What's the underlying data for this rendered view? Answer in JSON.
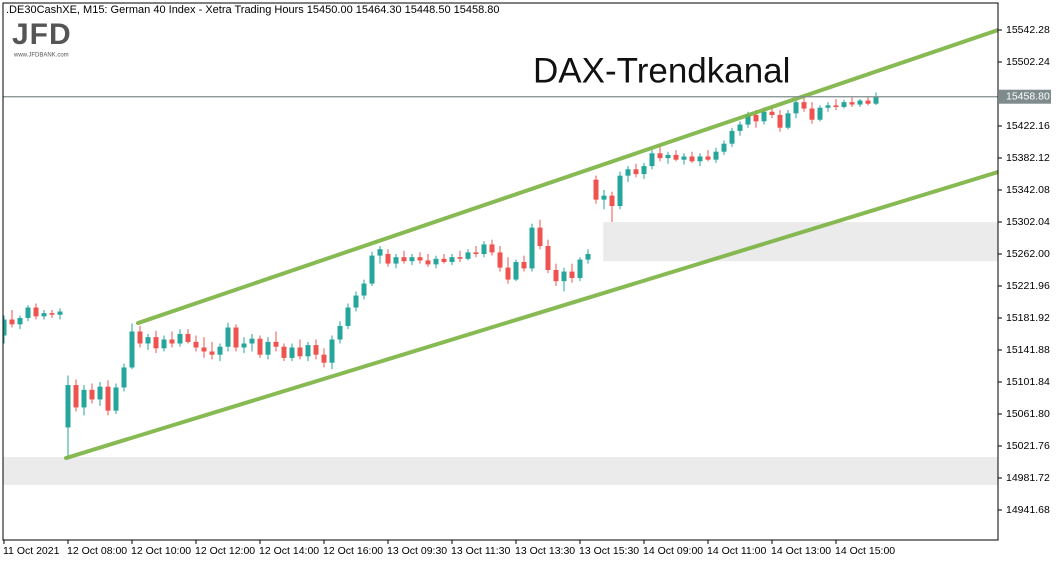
{
  "chart_data": {
    "type": "candlestick",
    "header": ".DE30CashXE, M15:  German 40 Index  - Xetra Trading Hours  15450.00 15464.30 15448.50 15458.80",
    "logo": "JFD",
    "logo_subtitle": "www.JFDBANK.com",
    "title": "DAX-Trendkanal",
    "categories": [
      "11 Oct 2021",
      null,
      null,
      null,
      null,
      null,
      null,
      null,
      "12 Oct 08:00",
      null,
      null,
      null,
      null,
      null,
      null,
      null,
      "12 Oct 10:00",
      null,
      null,
      null,
      null,
      null,
      null,
      null,
      "12 Oct 12:00",
      null,
      null,
      null,
      null,
      null,
      null,
      null,
      "12 Oct 14:00",
      null,
      null,
      null,
      null,
      null,
      null,
      null,
      "12 Oct 16:00",
      null,
      null,
      null,
      null,
      null,
      null,
      null,
      "13 Oct 09:30",
      null,
      null,
      null,
      null,
      null,
      null,
      null,
      "13 Oct 11:30",
      null,
      null,
      null,
      null,
      null,
      null,
      null,
      "13 Oct 13:30",
      null,
      null,
      null,
      null,
      null,
      null,
      null,
      "13 Oct 15:30",
      null,
      null,
      null,
      null,
      null,
      null,
      null,
      "14 Oct 09:00",
      null,
      null,
      null,
      null,
      null,
      null,
      null,
      "14 Oct 11:00",
      null,
      null,
      null,
      null,
      null,
      null,
      null,
      "14 Oct 13:00",
      null,
      null,
      null,
      null,
      null,
      null,
      null,
      "14 Oct 15:00",
      null,
      null,
      null,
      null,
      null
    ],
    "open": [
      15160,
      15180,
      15174,
      15182,
      15195,
      15184,
      15188,
      15186,
      15045,
      15098,
      15070,
      15092,
      15080,
      15096,
      15066,
      15095,
      15120,
      15165,
      15150,
      15158,
      15144,
      15155,
      15150,
      15162,
      15152,
      15145,
      15140,
      15136,
      15146,
      15170,
      15145,
      15150,
      15156,
      15136,
      15152,
      15146,
      15132,
      15145,
      15134,
      15148,
      15136,
      15126,
      15155,
      15172,
      15195,
      15210,
      15225,
      15260,
      15262,
      15250,
      15258,
      15253,
      15258,
      15254,
      15249,
      15256,
      15252,
      15258,
      15256,
      15264,
      15262,
      15274,
      15264,
      15245,
      15230,
      15252,
      15244,
      15295,
      15272,
      15242,
      15228,
      15240,
      15232,
      15255,
      15355,
      15330,
      15335,
      15322,
      15360,
      15368,
      15362,
      15372,
      15388,
      15382,
      15386,
      15380,
      15384,
      15378,
      15384,
      15380,
      15390,
      15400,
      15416,
      15424,
      15436,
      15428,
      15440,
      15436,
      15420,
      15438,
      15452,
      15444,
      15430,
      15445,
      15448,
      15446,
      15452,
      15449,
      15454,
      15450
    ],
    "high": [
      15185,
      15192,
      15185,
      15198,
      15200,
      15192,
      15192,
      15194,
      15110,
      15105,
      15098,
      15100,
      15102,
      15104,
      15100,
      15125,
      15175,
      15172,
      15162,
      15166,
      15160,
      15165,
      15168,
      15168,
      15160,
      15158,
      15152,
      15150,
      15176,
      15174,
      15158,
      15162,
      15160,
      15158,
      15165,
      15150,
      15150,
      15155,
      15152,
      15155,
      15144,
      15160,
      15178,
      15200,
      15215,
      15230,
      15265,
      15272,
      15268,
      15262,
      15266,
      15262,
      15264,
      15262,
      15260,
      15262,
      15262,
      15266,
      15268,
      15272,
      15278,
      15280,
      15272,
      15258,
      15255,
      15260,
      15300,
      15305,
      15280,
      15250,
      15245,
      15250,
      15258,
      15268,
      15360,
      15342,
      15340,
      15365,
      15372,
      15375,
      15376,
      15392,
      15396,
      15390,
      15392,
      15388,
      15390,
      15388,
      15392,
      15395,
      15404,
      15420,
      15428,
      15440,
      15442,
      15445,
      15448,
      15442,
      15442,
      15455,
      15458,
      15452,
      15448,
      15452,
      15456,
      15455,
      15458,
      15456,
      15458,
      15464.3
    ],
    "low": [
      15150,
      15170,
      15168,
      15178,
      15180,
      15180,
      15182,
      15180,
      15006,
      15065,
      15060,
      15075,
      15072,
      15060,
      15062,
      15090,
      15118,
      15145,
      15142,
      15138,
      15140,
      15145,
      15146,
      15150,
      15140,
      15132,
      15130,
      15128,
      15140,
      15140,
      15138,
      15140,
      15132,
      15130,
      15140,
      15128,
      15128,
      15130,
      15128,
      15130,
      15120,
      15118,
      15150,
      15168,
      15190,
      15205,
      15222,
      15250,
      15246,
      15244,
      15250,
      15248,
      15250,
      15246,
      15244,
      15250,
      15248,
      15252,
      15254,
      15258,
      15258,
      15260,
      15240,
      15225,
      15228,
      15240,
      15240,
      15268,
      15238,
      15222,
      15215,
      15226,
      15228,
      15250,
      15325,
      15318,
      15302,
      15318,
      15352,
      15358,
      15356,
      15368,
      15378,
      15375,
      15378,
      15374,
      15376,
      15372,
      15378,
      15376,
      15386,
      15396,
      15410,
      15420,
      15420,
      15424,
      15432,
      15415,
      15418,
      15432,
      15440,
      15425,
      15428,
      15440,
      15442,
      15444,
      15446,
      15446,
      15448,
      15448.5
    ],
    "close": [
      15180,
      15174,
      15182,
      15195,
      15184,
      15188,
      15186,
      15190,
      15098,
      15070,
      15092,
      15080,
      15096,
      15066,
      15095,
      15120,
      15165,
      15150,
      15158,
      15144,
      15155,
      15150,
      15162,
      15152,
      15145,
      15140,
      15136,
      15146,
      15170,
      15145,
      15150,
      15156,
      15136,
      15152,
      15146,
      15132,
      15145,
      15134,
      15148,
      15136,
      15126,
      15155,
      15172,
      15195,
      15210,
      15225,
      15260,
      15268,
      15250,
      15258,
      15253,
      15258,
      15254,
      15249,
      15256,
      15252,
      15258,
      15256,
      15264,
      15262,
      15274,
      15264,
      15245,
      15230,
      15252,
      15244,
      15295,
      15272,
      15242,
      15228,
      15240,
      15232,
      15255,
      15262,
      15330,
      15335,
      15322,
      15360,
      15368,
      15362,
      15372,
      15388,
      15382,
      15386,
      15380,
      15384,
      15378,
      15384,
      15380,
      15390,
      15400,
      15416,
      15424,
      15436,
      15428,
      15440,
      15436,
      15420,
      15438,
      15452,
      15444,
      15430,
      15445,
      15448,
      15446,
      15452,
      15449,
      15454,
      15450,
      15458.8
    ],
    "up_color": "#26a69a",
    "down_color": "#ef5350",
    "ylim": [
      14904.14,
      15576.06
    ],
    "yticks": [
      15542.28,
      15502.24,
      15422.16,
      15382.12,
      15342.08,
      15302.04,
      {
        "value": 15262,
        "label": "15262.00"
      },
      15221.96,
      15181.92,
      15141.88,
      15101.84,
      {
        "value": 15061.8,
        "label": "15061.80"
      },
      15021.76,
      14981.72,
      14941.68
    ],
    "last_price": {
      "value": 15458.8,
      "label": "15458.80"
    },
    "last_price_color": "#7f8c8d",
    "trendlines": [
      {
        "x": [
          16.75,
          124.25
        ],
        "y": [
          15175.6,
          15542.3
        ]
      },
      {
        "x": [
          7.75,
          124.25
        ],
        "y": [
          15006.7,
          15364.6
        ]
      }
    ],
    "trendline_color": "#7cb342",
    "zones": [
      {
        "x": [
          74.9,
          124.25
        ],
        "y": [
          15253,
          15302
        ]
      },
      {
        "x": [
          -0.25,
          124.25
        ],
        "y": [
          14973,
          15008
        ]
      }
    ],
    "zone_color": "#ebebeb"
  }
}
